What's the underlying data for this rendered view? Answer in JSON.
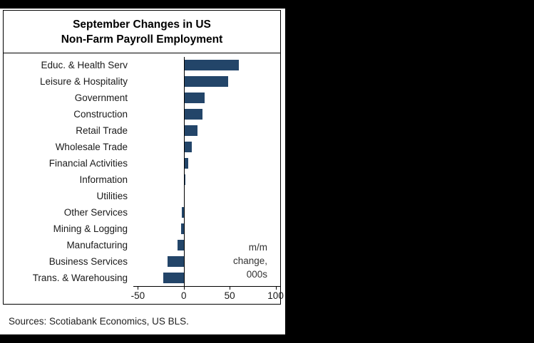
{
  "frame": {
    "background_color": "#000000",
    "panel_background": "#ffffff"
  },
  "chart_data": {
    "type": "bar",
    "orientation": "horizontal",
    "title_line1": "September Changes in US",
    "title_line2": "Non-Farm Payroll Employment",
    "categories": [
      "Educ. & Health Serv",
      "Leisure & Hospitality",
      "Government",
      "Construction",
      "Retail Trade",
      "Wholesale Trade",
      "Financial Activities",
      "Information",
      "Utilities",
      "Other Services",
      "Mining & Logging",
      "Manufacturing",
      "Business Services",
      "Trans. & Warehousing"
    ],
    "values": [
      60,
      48,
      23,
      20,
      15,
      9,
      5,
      2,
      1,
      -2,
      -3,
      -7,
      -18,
      -22
    ],
    "xlim": [
      -55,
      105
    ],
    "xticks": [
      -50,
      0,
      50,
      100
    ],
    "bar_color": "#234569",
    "grid": "off",
    "legend": "none",
    "annotation": [
      "m/m",
      "change,",
      "000s"
    ]
  },
  "footer": {
    "sources": "Sources: Scotiabank Economics, US BLS."
  }
}
